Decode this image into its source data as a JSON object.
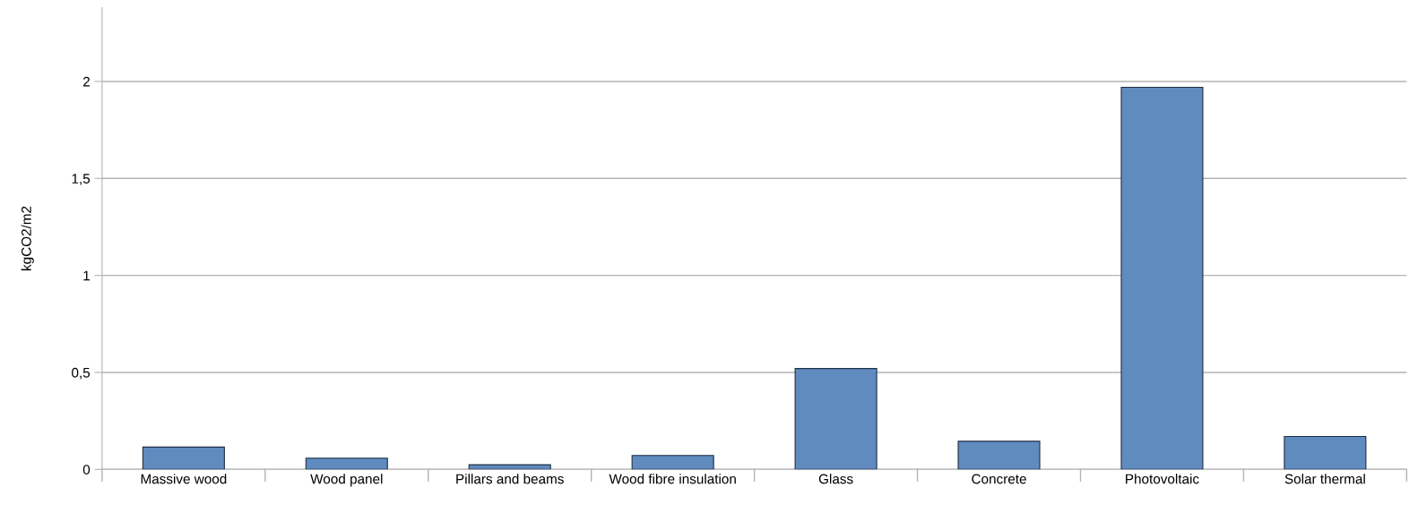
{
  "chart_data": {
    "type": "bar",
    "ylabel": "kgCO2/m2",
    "categories": [
      "Massive wood",
      "Wood panel",
      "Pillars and beams",
      "Wood fibre insulation",
      "Glass",
      "Concrete",
      "Photovoltaic",
      "Solar thermal"
    ],
    "values": [
      0.115,
      0.058,
      0.024,
      0.072,
      0.52,
      0.145,
      1.97,
      0.17
    ],
    "color": "#5f8bbf",
    "ylim": [
      0,
      2.38
    ],
    "yticks": [
      0,
      {
        "value": 0.5,
        "label": "0,5"
      },
      1,
      {
        "value": 1.5,
        "label": "1,5"
      },
      2
    ],
    "grid": "y",
    "legend": false
  }
}
